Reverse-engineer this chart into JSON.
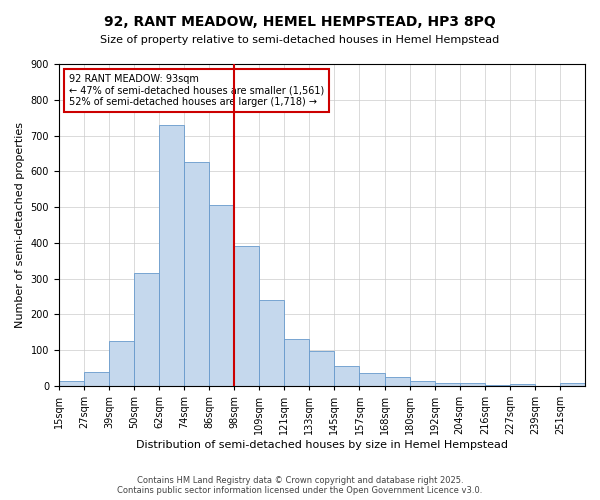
{
  "title": "92, RANT MEADOW, HEMEL HEMPSTEAD, HP3 8PQ",
  "subtitle": "Size of property relative to semi-detached houses in Hemel Hempstead",
  "xlabel": "Distribution of semi-detached houses by size in Hemel Hempstead",
  "ylabel": "Number of semi-detached properties",
  "footer_line1": "Contains HM Land Registry data © Crown copyright and database right 2025.",
  "footer_line2": "Contains public sector information licensed under the Open Government Licence v3.0.",
  "annotation_title": "92 RANT MEADOW: 93sqm",
  "annotation_line1": "← 47% of semi-detached houses are smaller (1,561)",
  "annotation_line2": "52% of semi-detached houses are larger (1,718) →",
  "property_size_bin": 7,
  "bar_color": "#c5d8ed",
  "bar_edge_color": "#6699cc",
  "vline_color": "#cc0000",
  "annotation_box_color": "#cc0000",
  "background_color": "#ffffff",
  "grid_color": "#cccccc",
  "bin_labels": [
    "15sqm",
    "27sqm",
    "39sqm",
    "50sqm",
    "62sqm",
    "74sqm",
    "86sqm",
    "98sqm",
    "109sqm",
    "121sqm",
    "133sqm",
    "145sqm",
    "157sqm",
    "168sqm",
    "180sqm",
    "192sqm",
    "204sqm",
    "216sqm",
    "227sqm",
    "239sqm",
    "251sqm"
  ],
  "counts": [
    13,
    38,
    125,
    315,
    730,
    625,
    505,
    390,
    240,
    130,
    97,
    55,
    35,
    25,
    15,
    8,
    8,
    3,
    5,
    0,
    7
  ],
  "ylim": [
    0,
    900
  ],
  "yticks": [
    0,
    100,
    200,
    300,
    400,
    500,
    600,
    700,
    800,
    900
  ],
  "title_fontsize": 10,
  "subtitle_fontsize": 8,
  "ylabel_fontsize": 8,
  "xlabel_fontsize": 8,
  "tick_fontsize": 7,
  "annotation_fontsize": 7,
  "footer_fontsize": 6
}
